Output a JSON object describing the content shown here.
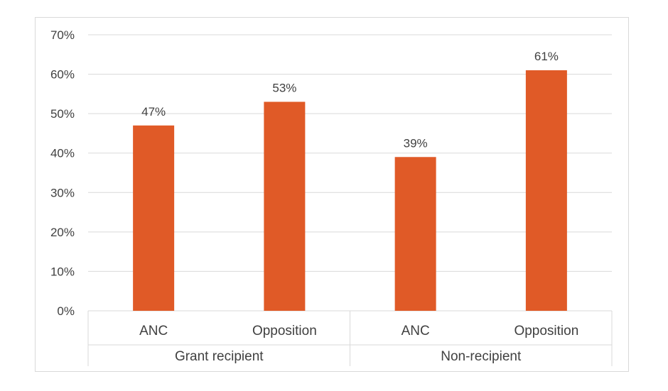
{
  "chart_data": {
    "type": "bar",
    "title": "",
    "xlabel": "",
    "ylabel": "",
    "ylim": [
      0,
      70
    ],
    "ytick_step": 10,
    "ytick_suffix": "%",
    "grid": true,
    "bar_color": "#E05A27",
    "grid_color": "#d9d9d9",
    "groups": [
      {
        "name": "Grant recipient",
        "bars": [
          {
            "category": "ANC",
            "value": 47,
            "label": "47%"
          },
          {
            "category": "Opposition",
            "value": 53,
            "label": "53%"
          }
        ]
      },
      {
        "name": "Non-recipient",
        "bars": [
          {
            "category": "ANC",
            "value": 39,
            "label": "39%"
          },
          {
            "category": "Opposition",
            "value": 61,
            "label": "61%"
          }
        ]
      }
    ]
  }
}
